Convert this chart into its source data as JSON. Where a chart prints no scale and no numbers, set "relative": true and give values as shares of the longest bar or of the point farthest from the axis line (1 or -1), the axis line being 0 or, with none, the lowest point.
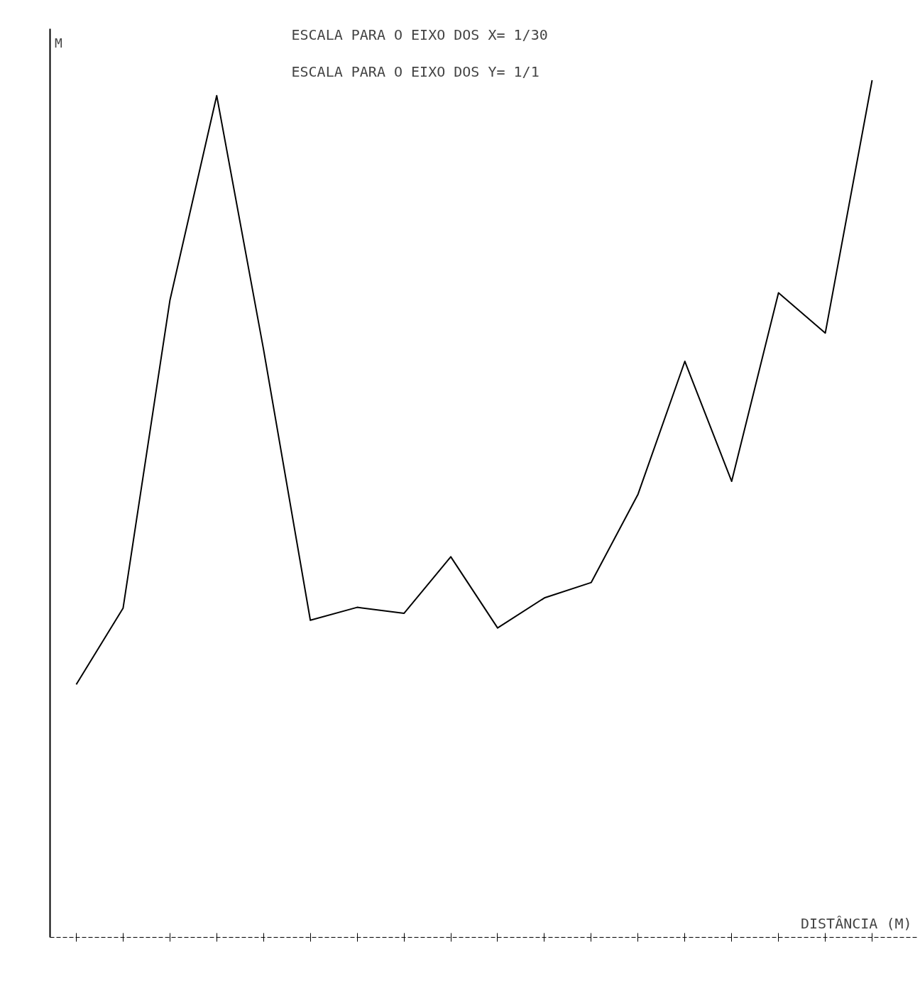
{
  "chart_data": {
    "type": "line",
    "relative": true,
    "ylabel": "M",
    "xlabel": "DISTÂNCIA (M)",
    "annotations": [
      "ESCALA PARA O EIXO DOS X= 1/30",
      "ESCALA PARA O EIXO DOS Y= 1/1"
    ],
    "categories": [
      null,
      null,
      null,
      null,
      null,
      null,
      null,
      null,
      null,
      null,
      null,
      null,
      null,
      null,
      null,
      null,
      null,
      null
    ],
    "series": [
      {
        "color": "#000000",
        "values": [
          0.295,
          0.384,
          0.743,
          0.982,
          0.686,
          0.37,
          0.385,
          0.378,
          0.444,
          0.361,
          0.396,
          0.414,
          0.517,
          0.672,
          0.532,
          0.752,
          0.705,
          1.0
        ]
      }
    ],
    "grid": false
  }
}
